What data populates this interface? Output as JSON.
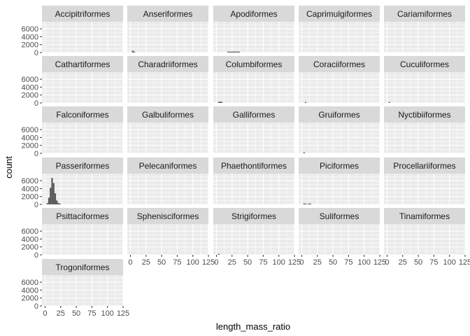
{
  "chart_data": {
    "type": "bar",
    "subtype": "faceted-histogram",
    "xlabel": "length_mass_ratio",
    "ylabel": "count",
    "xlim": [
      -5,
      125
    ],
    "ylim": [
      0,
      7800
    ],
    "x_ticks": [
      0,
      25,
      50,
      75,
      100,
      125
    ],
    "x_tick_labels": [
      "0",
      "25",
      "50",
      "75",
      "100",
      "125"
    ],
    "y_ticks": [
      0,
      2000,
      4000,
      6000
    ],
    "y_tick_labels": [
      "0",
      "2000",
      "4000",
      "6000"
    ],
    "bin_width": 2.5,
    "facet_columns": 5,
    "bar_color": "#595959",
    "grid": true,
    "panels": [
      {
        "name": "Accipitriformes",
        "bins": []
      },
      {
        "name": "Anseriformes",
        "bins": [
          [
            2.5,
            450
          ],
          [
            5,
            120
          ]
        ]
      },
      {
        "name": "Apodiformes",
        "bins": [
          [
            17.5,
            60
          ],
          [
            20,
            150
          ],
          [
            22.5,
            180
          ],
          [
            25,
            200
          ],
          [
            27.5,
            190
          ],
          [
            30,
            170
          ],
          [
            32.5,
            150
          ],
          [
            35,
            90
          ]
        ]
      },
      {
        "name": "Caprimulgiformes",
        "bins": []
      },
      {
        "name": "Cariamiformes",
        "bins": []
      },
      {
        "name": "Cathartiformes",
        "bins": []
      },
      {
        "name": "Charadriiformes",
        "bins": []
      },
      {
        "name": "Columbiformes",
        "bins": [
          [
            2.5,
            250
          ],
          [
            5,
            350
          ],
          [
            7.5,
            200
          ]
        ]
      },
      {
        "name": "Coraciiformes",
        "bins": [
          [
            5,
            120
          ]
        ]
      },
      {
        "name": "Cuculiformes",
        "bins": [
          [
            2.5,
            90
          ]
        ]
      },
      {
        "name": "Falconiformes",
        "bins": []
      },
      {
        "name": "Galbuliformes",
        "bins": []
      },
      {
        "name": "Galliformes",
        "bins": []
      },
      {
        "name": "Gruiformes",
        "bins": [
          [
            2.5,
            150
          ]
        ]
      },
      {
        "name": "Nyctibiiformes",
        "bins": []
      },
      {
        "name": "Passeriformes",
        "bins": [
          [
            2.5,
            300
          ],
          [
            5,
            1700
          ],
          [
            7.5,
            4200
          ],
          [
            10,
            6700
          ],
          [
            12.5,
            5400
          ],
          [
            15,
            2800
          ],
          [
            17.5,
            1000
          ],
          [
            20,
            350
          ],
          [
            22.5,
            100
          ]
        ]
      },
      {
        "name": "Pelecaniformes",
        "bins": []
      },
      {
        "name": "Phaethontiformes",
        "bins": []
      },
      {
        "name": "Piciformes",
        "bins": [
          [
            2.5,
            80
          ],
          [
            5,
            100
          ],
          [
            10,
            120
          ],
          [
            12.5,
            110
          ]
        ]
      },
      {
        "name": "Procellariiformes",
        "bins": []
      },
      {
        "name": "Psittaciformes",
        "bins": []
      },
      {
        "name": "Sphenisciformes",
        "bins": []
      },
      {
        "name": "Strigiformes",
        "bins": [
          [
            2.5,
            180
          ]
        ]
      },
      {
        "name": "Suliformes",
        "bins": []
      },
      {
        "name": "Tinamiformes",
        "bins": []
      },
      {
        "name": "Trogoniformes",
        "bins": []
      }
    ]
  }
}
